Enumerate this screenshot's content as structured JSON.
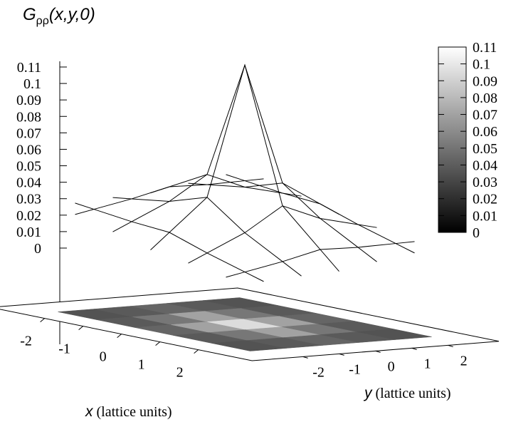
{
  "chart_data": {
    "type": "surface3d",
    "title": "G",
    "title_subscript": "ρρ",
    "title_args": "(x,y,0)",
    "xlabel_var": "x",
    "xlabel_unit": " (lattice units)",
    "ylabel_var": "y",
    "ylabel_unit": " (lattice units)",
    "x": [
      -2,
      -1,
      0,
      1,
      2
    ],
    "y": [
      -2,
      -1,
      0,
      1,
      2
    ],
    "z": [
      [
        0.012,
        0.014,
        0.017,
        0.014,
        0.012
      ],
      [
        0.014,
        0.022,
        0.034,
        0.022,
        0.014
      ],
      [
        0.017,
        0.034,
        0.11,
        0.034,
        0.017
      ],
      [
        0.014,
        0.022,
        0.034,
        0.022,
        0.014
      ],
      [
        0.012,
        0.014,
        0.017,
        0.014,
        0.012
      ]
    ],
    "zlim": [
      0,
      0.11
    ],
    "z_ticks": [
      "0",
      "0.01",
      "0.02",
      "0.03",
      "0.04",
      "0.05",
      "0.06",
      "0.07",
      "0.08",
      "0.09",
      "0.1",
      "0.11"
    ],
    "x_ticks": [
      "-2",
      "-1",
      "0",
      "1",
      "2"
    ],
    "y_ticks": [
      "-2",
      "-1",
      "0",
      "1",
      "2"
    ],
    "colorbar_ticks": [
      "0",
      "0.01",
      "0.02",
      "0.03",
      "0.04",
      "0.05",
      "0.06",
      "0.07",
      "0.08",
      "0.09",
      "0.1",
      "0.11"
    ],
    "colormap": "gray",
    "grid": false,
    "projection": "base-heatmap"
  }
}
